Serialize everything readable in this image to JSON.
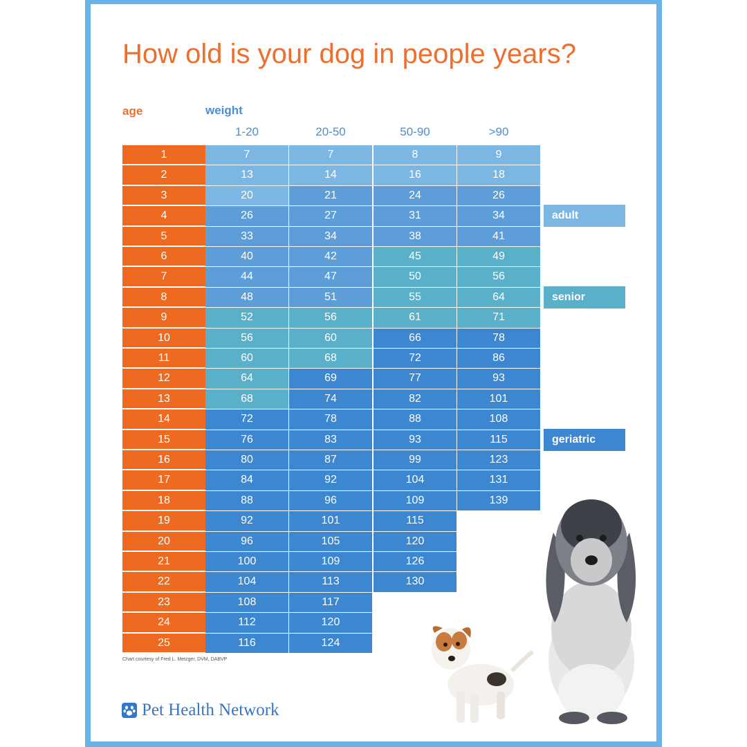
{
  "header": {
    "title": "How old is your dog in people years?"
  },
  "colors": {
    "frame": "#6ab3e8",
    "title": "#ee6f2d",
    "age": "#ee6a21",
    "adult": "#7cb7e3",
    "mid": "#5d9ed8",
    "senior": "#5bb0c9",
    "geriatric": "#3d86d0"
  },
  "chart_data": {
    "type": "table",
    "title": "How old is your dog in people years?",
    "row_header": "age",
    "column_group_header": "weight",
    "columns": [
      "1-20",
      "20-50",
      "50-90",
      ">90"
    ],
    "rows": [
      {
        "age": "1",
        "values": [
          "7",
          "7",
          "8",
          "9"
        ],
        "stages": [
          "adult",
          "adult",
          "adult",
          "adult"
        ]
      },
      {
        "age": "2",
        "values": [
          "13",
          "14",
          "16",
          "18"
        ],
        "stages": [
          "adult",
          "adult",
          "adult",
          "adult"
        ]
      },
      {
        "age": "3",
        "values": [
          "20",
          "21",
          "24",
          "26"
        ],
        "stages": [
          "adult",
          "mid",
          "mid",
          "mid"
        ]
      },
      {
        "age": "4",
        "values": [
          "26",
          "27",
          "31",
          "34"
        ],
        "stages": [
          "mid",
          "mid",
          "mid",
          "mid"
        ]
      },
      {
        "age": "5",
        "values": [
          "33",
          "34",
          "38",
          "41"
        ],
        "stages": [
          "mid",
          "mid",
          "mid",
          "mid"
        ]
      },
      {
        "age": "6",
        "values": [
          "40",
          "42",
          "45",
          "49"
        ],
        "stages": [
          "mid",
          "mid",
          "senior",
          "senior"
        ]
      },
      {
        "age": "7",
        "values": [
          "44",
          "47",
          "50",
          "56"
        ],
        "stages": [
          "mid",
          "mid",
          "senior",
          "senior"
        ]
      },
      {
        "age": "8",
        "values": [
          "48",
          "51",
          "55",
          "64"
        ],
        "stages": [
          "mid",
          "mid",
          "senior",
          "senior"
        ]
      },
      {
        "age": "9",
        "values": [
          "52",
          "56",
          "61",
          "71"
        ],
        "stages": [
          "senior",
          "senior",
          "senior",
          "senior"
        ]
      },
      {
        "age": "10",
        "values": [
          "56",
          "60",
          "66",
          "78"
        ],
        "stages": [
          "senior",
          "senior",
          "geriatric",
          "geriatric"
        ]
      },
      {
        "age": "11",
        "values": [
          "60",
          "68",
          "72",
          "86"
        ],
        "stages": [
          "senior",
          "senior",
          "geriatric",
          "geriatric"
        ]
      },
      {
        "age": "12",
        "values": [
          "64",
          "69",
          "77",
          "93"
        ],
        "stages": [
          "senior",
          "geriatric",
          "geriatric",
          "geriatric"
        ]
      },
      {
        "age": "13",
        "values": [
          "68",
          "74",
          "82",
          "101"
        ],
        "stages": [
          "senior",
          "geriatric",
          "geriatric",
          "geriatric"
        ]
      },
      {
        "age": "14",
        "values": [
          "72",
          "78",
          "88",
          "108"
        ],
        "stages": [
          "geriatric",
          "geriatric",
          "geriatric",
          "geriatric"
        ]
      },
      {
        "age": "15",
        "values": [
          "76",
          "83",
          "93",
          "115"
        ],
        "stages": [
          "geriatric",
          "geriatric",
          "geriatric",
          "geriatric"
        ]
      },
      {
        "age": "16",
        "values": [
          "80",
          "87",
          "99",
          "123"
        ],
        "stages": [
          "geriatric",
          "geriatric",
          "geriatric",
          "geriatric"
        ]
      },
      {
        "age": "17",
        "values": [
          "84",
          "92",
          "104",
          "131"
        ],
        "stages": [
          "geriatric",
          "geriatric",
          "geriatric",
          "geriatric"
        ]
      },
      {
        "age": "18",
        "values": [
          "88",
          "96",
          "109",
          "139"
        ],
        "stages": [
          "geriatric",
          "geriatric",
          "geriatric",
          "geriatric"
        ]
      },
      {
        "age": "19",
        "values": [
          "92",
          "101",
          "115"
        ],
        "stages": [
          "geriatric",
          "geriatric",
          "geriatric"
        ]
      },
      {
        "age": "20",
        "values": [
          "96",
          "105",
          "120"
        ],
        "stages": [
          "geriatric",
          "geriatric",
          "geriatric"
        ]
      },
      {
        "age": "21",
        "values": [
          "100",
          "109",
          "126"
        ],
        "stages": [
          "geriatric",
          "geriatric",
          "geriatric"
        ]
      },
      {
        "age": "22",
        "values": [
          "104",
          "113",
          "130"
        ],
        "stages": [
          "geriatric",
          "geriatric",
          "geriatric"
        ]
      },
      {
        "age": "23",
        "values": [
          "108",
          "117"
        ],
        "stages": [
          "geriatric",
          "geriatric"
        ]
      },
      {
        "age": "24",
        "values": [
          "112",
          "120"
        ],
        "stages": [
          "geriatric",
          "geriatric"
        ]
      },
      {
        "age": "25",
        "values": [
          "116",
          "124"
        ],
        "stages": [
          "geriatric",
          "geriatric"
        ]
      }
    ],
    "stage_labels": [
      {
        "label": "adult",
        "age": "4",
        "stage": "adult"
      },
      {
        "label": "senior",
        "age": "8",
        "stage": "senior"
      },
      {
        "label": "geriatric",
        "age": "15",
        "stage": "geriatric"
      }
    ]
  },
  "footer": {
    "credit": "Chart courtesy of Fred L. Metzger, DVM, DABVP",
    "logo_text": "Pet Health Network"
  }
}
